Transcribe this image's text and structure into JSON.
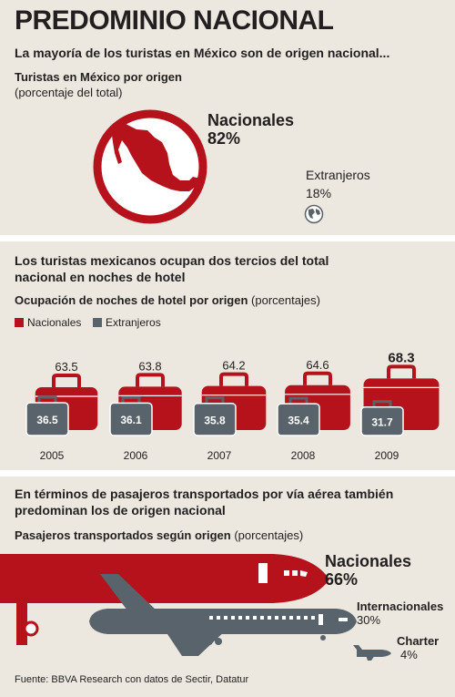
{
  "title": "PREDOMINIO NACIONAL",
  "section1": {
    "headline": "La mayoría de los turistas en México son de origen nacional...",
    "chart_title": "Turistas en México por origen",
    "chart_unit": "(porcentaje del total)",
    "nacionales_label": "Nacionales",
    "nacionales_value": "82%",
    "extranjeros_label": "Extranjeros",
    "extranjeros_value": "18%"
  },
  "section2": {
    "headline": "Los turistas mexicanos ocupan dos tercios del total nacional en noches de hotel",
    "chart_title": "Ocupación de noches de hotel por origen",
    "chart_unit": "(porcentajes)",
    "legend_nacionales": "Nacionales",
    "legend_extranjeros": "Extranjeros"
  },
  "section3": {
    "headline": "En términos de pasajeros transportados por vía aérea también predominan los de origen nacional",
    "chart_title": "Pasajeros transportados según origen",
    "chart_unit": "(porcentajes)",
    "nacionales_label": "Nacionales",
    "nacionales_value": "66%",
    "internacionales_label": "Internacionales",
    "internacionales_value": "30%",
    "charter_label": "Charter",
    "charter_value": "4%"
  },
  "source": "Fuente: BBVA Research con datos de Sectir, Datatur",
  "colors": {
    "red": "#b5121b",
    "gray": "#59636b",
    "bg": "#ece8df"
  },
  "chart_data": [
    {
      "type": "pie",
      "title": "Turistas en México por origen",
      "categories": [
        "Nacionales",
        "Extranjeros"
      ],
      "values": [
        82,
        18
      ]
    },
    {
      "type": "bar",
      "title": "Ocupación de noches de hotel por origen",
      "categories": [
        "2005",
        "2006",
        "2007",
        "2008",
        "2009"
      ],
      "series": [
        {
          "name": "Nacionales",
          "values": [
            63.5,
            63.8,
            64.2,
            64.6,
            68.3
          ]
        },
        {
          "name": "Extranjeros",
          "values": [
            36.5,
            36.1,
            35.8,
            35.4,
            31.7
          ]
        }
      ]
    },
    {
      "type": "bar",
      "title": "Pasajeros transportados según origen",
      "categories": [
        "Nacionales",
        "Internacionales",
        "Charter"
      ],
      "values": [
        66,
        30,
        4
      ]
    }
  ]
}
